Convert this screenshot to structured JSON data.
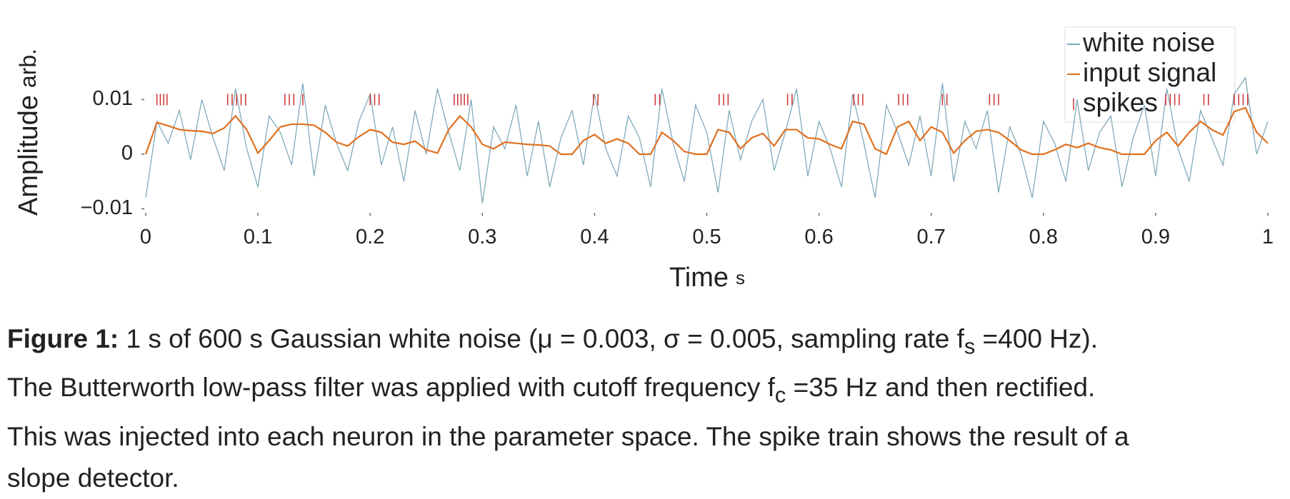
{
  "chart_data": {
    "type": "line",
    "xlabel": "Time",
    "xunit": "s",
    "ylabel": "Amplitude",
    "yunit": "arb.",
    "x": [
      0,
      0.01,
      0.02,
      0.03,
      0.04,
      0.05,
      0.06,
      0.07,
      0.08,
      0.09,
      0.1,
      0.11,
      0.12,
      0.13,
      0.14,
      0.15,
      0.16,
      0.17,
      0.18,
      0.19,
      0.2,
      0.21,
      0.22,
      0.23,
      0.24,
      0.25,
      0.26,
      0.27,
      0.28,
      0.29,
      0.3,
      0.31,
      0.32,
      0.33,
      0.34,
      0.35,
      0.36,
      0.37,
      0.38,
      0.39,
      0.4,
      0.41,
      0.42,
      0.43,
      0.44,
      0.45,
      0.46,
      0.47,
      0.48,
      0.49,
      0.5,
      0.51,
      0.52,
      0.53,
      0.54,
      0.55,
      0.56,
      0.57,
      0.58,
      0.59,
      0.6,
      0.61,
      0.62,
      0.63,
      0.64,
      0.65,
      0.66,
      0.67,
      0.68,
      0.69,
      0.7,
      0.71,
      0.72,
      0.73,
      0.74,
      0.75,
      0.76,
      0.77,
      0.78,
      0.79,
      0.8,
      0.81,
      0.82,
      0.83,
      0.84,
      0.85,
      0.86,
      0.87,
      0.88,
      0.89,
      0.9,
      0.91,
      0.92,
      0.93,
      0.94,
      0.95,
      0.96,
      0.97,
      0.98,
      0.99,
      1
    ],
    "series": [
      {
        "name": "white noise",
        "color": "#80aabb",
        "values": [
          -0.008,
          0.006,
          0.002,
          0.008,
          -0.001,
          0.01,
          0.003,
          -0.003,
          0.012,
          0.001,
          -0.006,
          0.007,
          0.004,
          -0.002,
          0.013,
          -0.004,
          0.009,
          0.002,
          -0.003,
          0.006,
          0.011,
          -0.002,
          0.005,
          -0.005,
          0.008,
          0.0,
          0.012,
          0.004,
          -0.003,
          0.01,
          -0.009,
          0.005,
          0.001,
          0.009,
          -0.004,
          0.006,
          -0.006,
          0.003,
          0.008,
          -0.002,
          0.011,
          0.001,
          -0.004,
          0.007,
          0.003,
          -0.006,
          0.012,
          0.002,
          -0.005,
          0.009,
          0.004,
          -0.007,
          0.008,
          -0.001,
          0.006,
          0.01,
          -0.003,
          0.004,
          0.012,
          -0.004,
          0.006,
          0.001,
          -0.006,
          0.011,
          0.002,
          -0.008,
          0.009,
          0.004,
          -0.002,
          0.007,
          -0.004,
          0.013,
          -0.005,
          0.006,
          0.001,
          0.008,
          -0.007,
          0.005,
          0.0,
          -0.008,
          0.006,
          0.002,
          -0.005,
          0.01,
          -0.003,
          0.004,
          0.007,
          -0.006,
          0.003,
          0.009,
          -0.004,
          0.012,
          0.001,
          -0.005,
          0.008,
          0.003,
          -0.002,
          0.011,
          0.014,
          0.0,
          0.006
        ]
      },
      {
        "name": "input signal",
        "color": "#e07020",
        "values": [
          0,
          0.0058,
          0.0052,
          0.0045,
          0.0043,
          0.0042,
          0.0038,
          0.0048,
          0.007,
          0.0045,
          0.0002,
          0.0025,
          0.005,
          0.0055,
          0.0055,
          0.0053,
          0.004,
          0.0022,
          0.0015,
          0.0032,
          0.0045,
          0.004,
          0.0022,
          0.0018,
          0.0024,
          0.0008,
          0.0002,
          0.0045,
          0.007,
          0.005,
          0.0018,
          0.001,
          0.0022,
          0.002,
          0.0018,
          0.0017,
          0.0015,
          0,
          0,
          0.0025,
          0.0036,
          0.002,
          0.0028,
          0.002,
          0,
          0,
          0.004,
          0.0025,
          0.0005,
          0,
          0,
          0.0045,
          0.004,
          0.001,
          0.003,
          0.0038,
          0.0015,
          0.0045,
          0.0045,
          0.003,
          0.0028,
          0.0018,
          0.001,
          0.006,
          0.0055,
          0.001,
          0,
          0.005,
          0.006,
          0.0025,
          0.005,
          0.004,
          0.0002,
          0.0025,
          0.0042,
          0.0045,
          0.004,
          0.0025,
          0.0008,
          0,
          0,
          0.0008,
          0.0018,
          0.0012,
          0.002,
          0.0012,
          0.0008,
          0,
          0,
          0,
          0.0025,
          0.004,
          0.0015,
          0.004,
          0.006,
          0.0045,
          0.0035,
          0.0078,
          0.0085,
          0.004,
          0.002
        ]
      },
      {
        "name": "spikes",
        "color": "#d03030",
        "marker": "|",
        "x": [
          0.01,
          0.013,
          0.016,
          0.019,
          0.073,
          0.077,
          0.081,
          0.085,
          0.089,
          0.124,
          0.128,
          0.132,
          0.14,
          0.2,
          0.204,
          0.208,
          0.275,
          0.278,
          0.281,
          0.284,
          0.287,
          0.399,
          0.403,
          0.454,
          0.458,
          0.511,
          0.515,
          0.519,
          0.572,
          0.576,
          0.631,
          0.635,
          0.639,
          0.671,
          0.675,
          0.679,
          0.71,
          0.714,
          0.752,
          0.756,
          0.76,
          0.909,
          0.913,
          0.917,
          0.921,
          0.943,
          0.947,
          0.97,
          0.974,
          0.978,
          0.982
        ],
        "values": [
          0.01,
          0.01,
          0.01,
          0.01,
          0.01,
          0.01,
          0.01,
          0.01,
          0.01,
          0.01,
          0.01,
          0.01,
          0.01,
          0.01,
          0.01,
          0.01,
          0.01,
          0.01,
          0.01,
          0.01,
          0.01,
          0.01,
          0.01,
          0.01,
          0.01,
          0.01,
          0.01,
          0.01,
          0.01,
          0.01,
          0.01,
          0.01,
          0.01,
          0.01,
          0.01,
          0.01,
          0.01,
          0.01,
          0.01,
          0.01,
          0.01,
          0.01,
          0.01,
          0.01,
          0.01,
          0.01,
          0.01,
          0.01,
          0.01,
          0.01,
          0.01
        ]
      }
    ],
    "xlim": [
      0,
      1
    ],
    "xticks": [
      0,
      0.1,
      0.2,
      0.3,
      0.4,
      0.5,
      0.6,
      0.7,
      0.8,
      0.9,
      1
    ],
    "ylim": [
      -0.0105,
      0.0162
    ],
    "yticks": [
      {
        "value": -0.01,
        "label": "−0.01"
      },
      0,
      0.01
    ],
    "grid": false,
    "legend": "upper right"
  },
  "caption": {
    "label": "Figure 1:",
    "line1": {
      "before": "1 s of 600 s Gaussian white noise (μ = 0.003, σ = 0.005, sampling rate f",
      "sub": "s",
      "after": " =400 Hz)."
    },
    "line2": {
      "before": "The Butterworth low-pass filter was applied with cutoff frequency f",
      "sub": "c",
      "after": " =35 Hz and then rectified."
    },
    "line3": "This was injected into each neuron in the parameter space. The spike train shows the result of a",
    "line4": "slope detector."
  }
}
